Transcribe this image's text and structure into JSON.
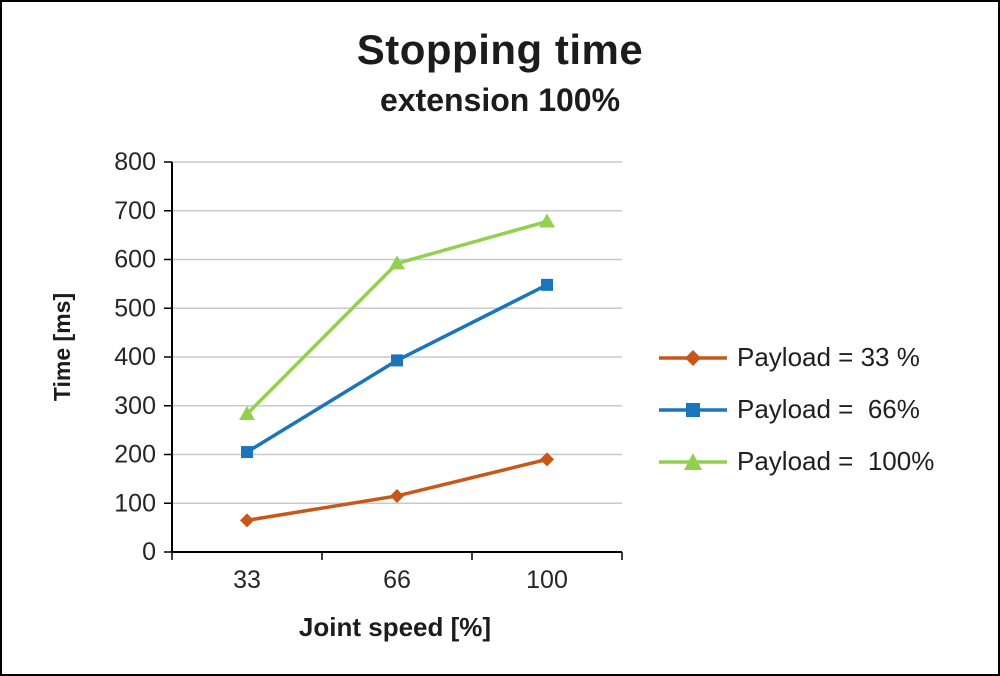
{
  "chart_data": {
    "type": "line",
    "title": "Stopping time",
    "subtitle": "extension 100%",
    "xlabel": "Joint speed [%]",
    "ylabel": "Time [ms]",
    "categories": [
      "33",
      "66",
      "100"
    ],
    "series": [
      {
        "name": "Payload = 33 %",
        "marker": "diamond",
        "color": "#C8581A",
        "values": [
          65,
          115,
          190
        ]
      },
      {
        "name": "Payload =  66%",
        "marker": "square",
        "color": "#1B75BC",
        "values": [
          205,
          393,
          548
        ]
      },
      {
        "name": "Payload =  100%",
        "marker": "triangle",
        "color": "#92D050",
        "values": [
          283,
          592,
          678
        ]
      }
    ],
    "ylim": [
      0,
      800
    ],
    "ytick_step": 100,
    "grid": true,
    "legend_position": "right",
    "grid_color": "#C9C9C9",
    "axis_color": "#000000",
    "text_color": "#262626"
  }
}
